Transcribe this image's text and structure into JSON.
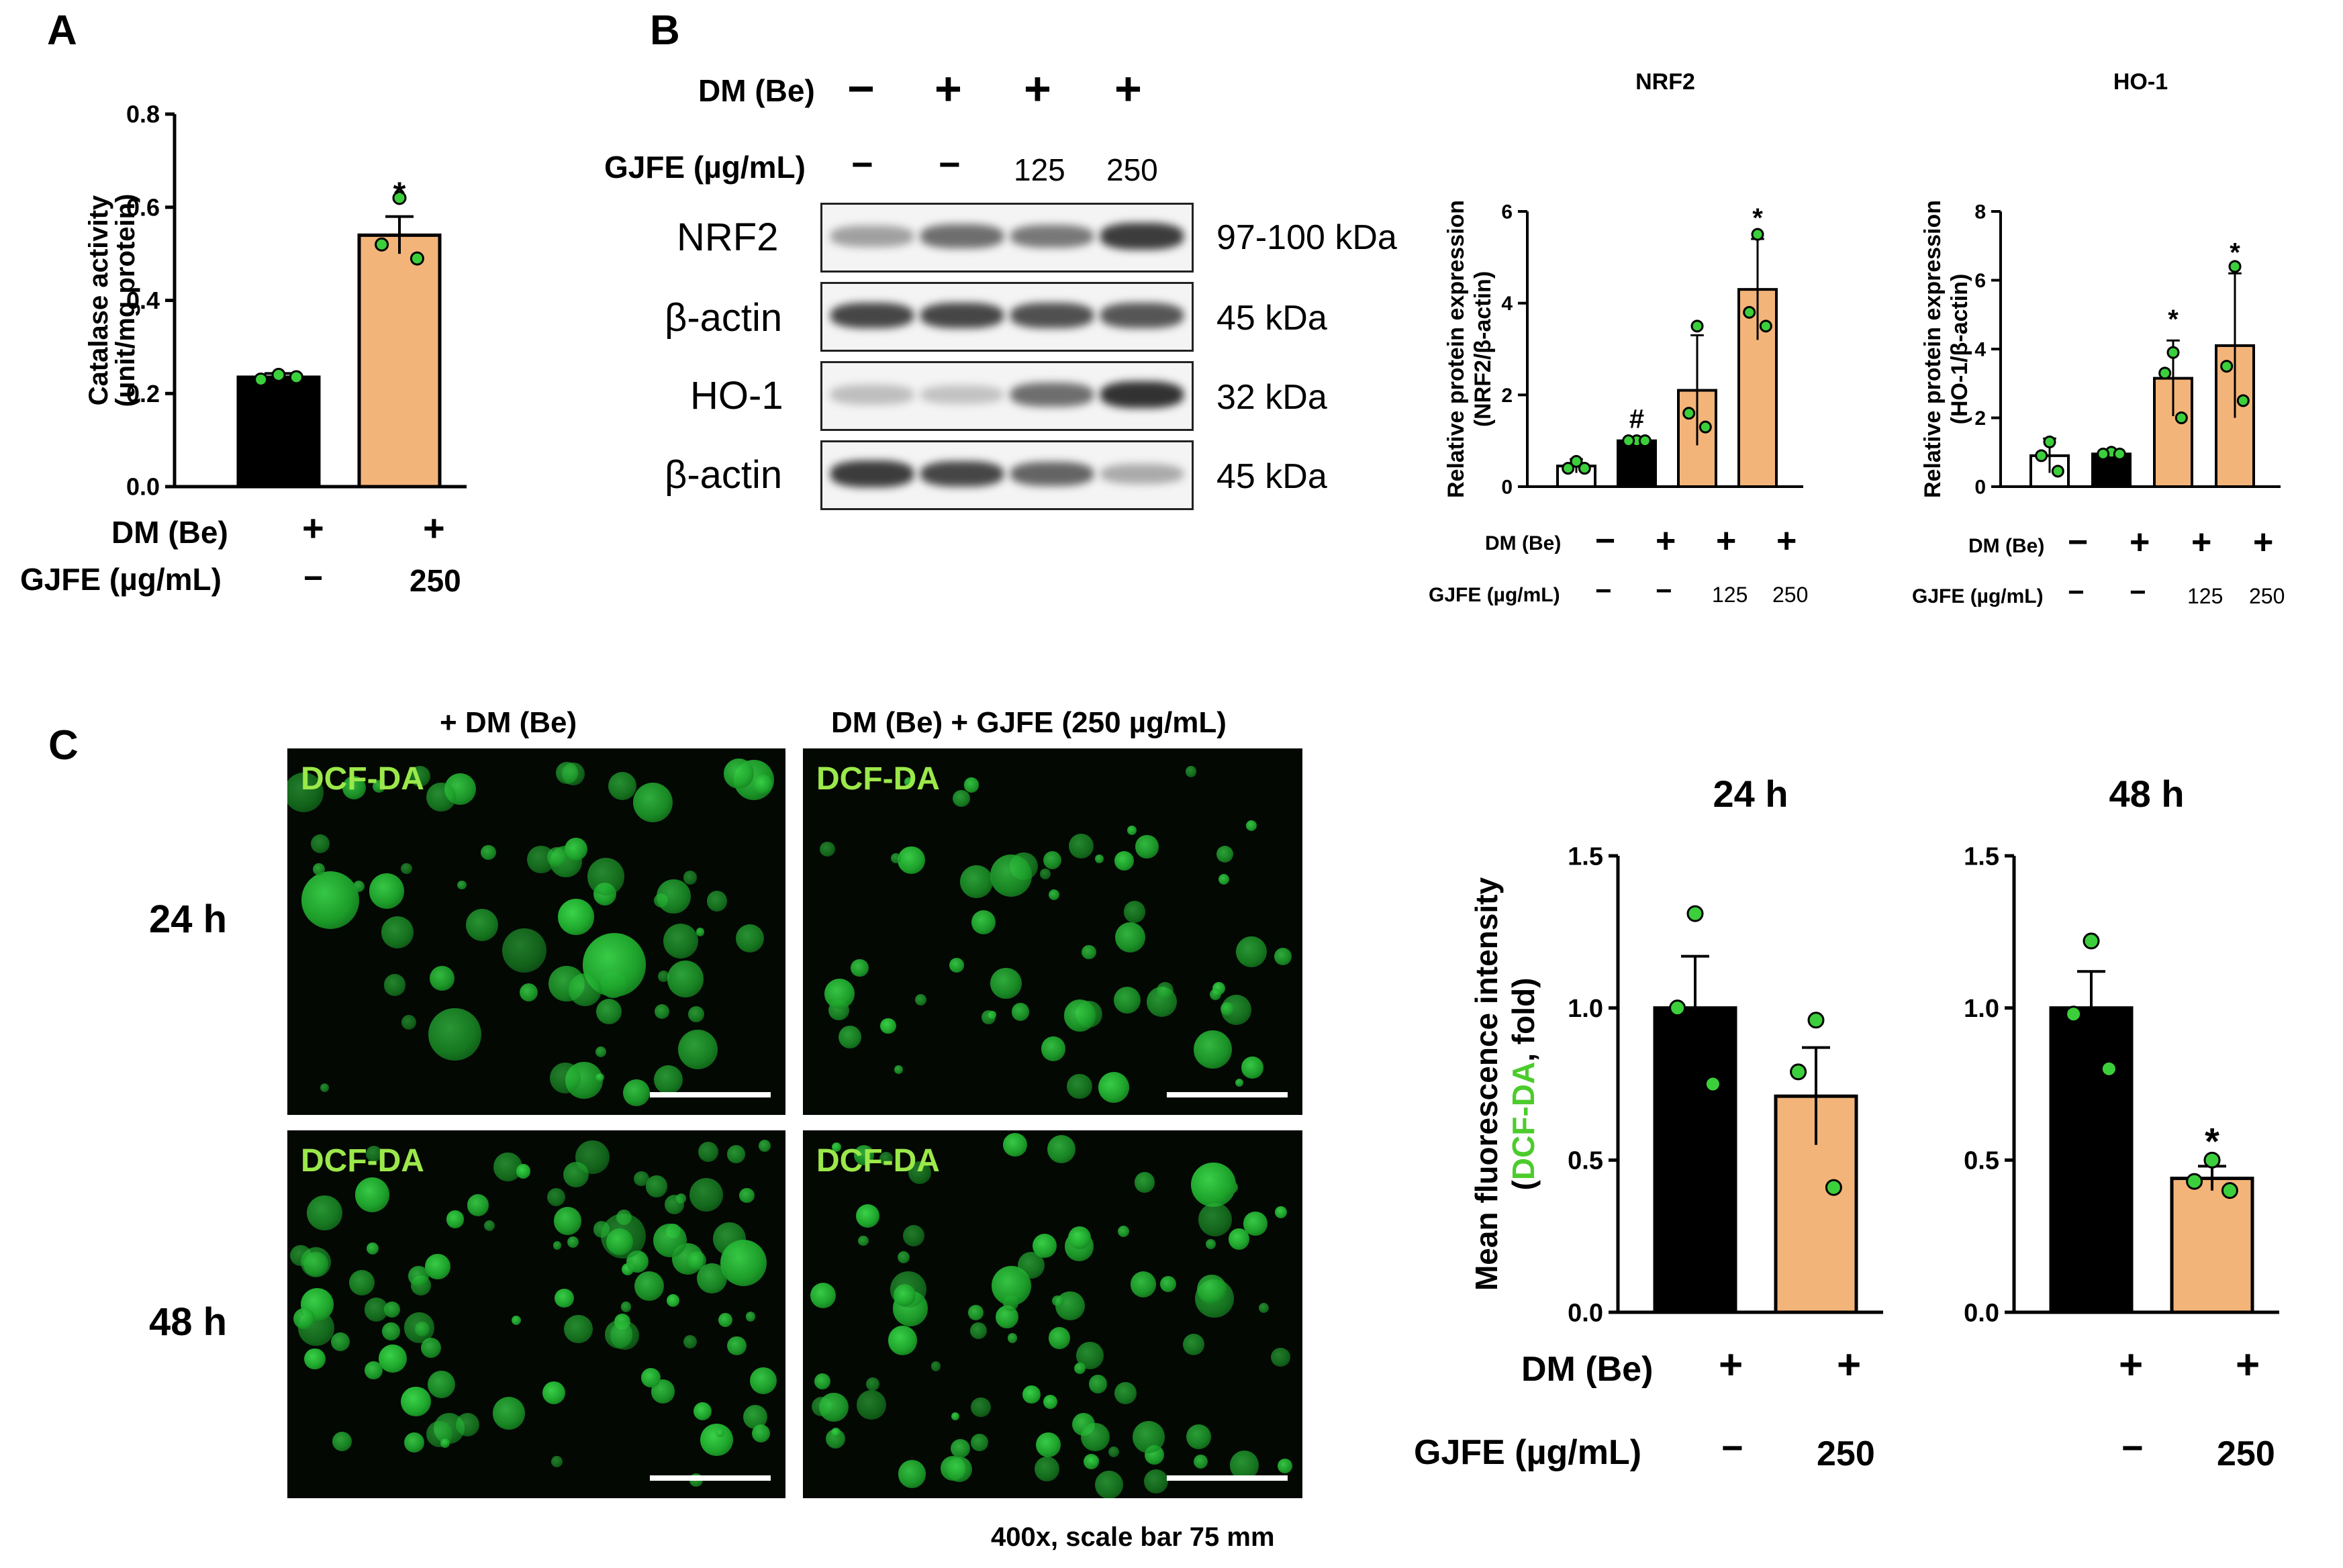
{
  "panels": {
    "A": "A",
    "B": "B",
    "C": "C"
  },
  "colors": {
    "black_bar": "#000000",
    "orange_bar": "#f3b47a",
    "white_bar": "#ffffff",
    "dot_green": "#3ccf3c",
    "dcf_label": "#9be84a",
    "ylabel_green": "#4ccc2c"
  },
  "panel_a": {
    "condition_labels": [
      "DM (Be)",
      "GJFE (µg/mL)"
    ],
    "dm_marks": [
      "+",
      "+"
    ],
    "gjfe_marks": [
      "−",
      "250"
    ]
  },
  "panel_b": {
    "dm_label": "DM (Be)",
    "gjfe_label": "GJFE (µg/mL)",
    "dm_marks": [
      "−",
      "+",
      "+",
      "+"
    ],
    "gjfe_marks": [
      "−",
      "−",
      "125",
      "250"
    ],
    "blots": [
      {
        "name": "NRF2",
        "kda": "97-100 kDa"
      },
      {
        "name": "β-actin",
        "kda": "45 kDa"
      },
      {
        "name": "HO-1",
        "kda": "32 kDa"
      },
      {
        "name": "β-actin",
        "kda": "45 kDa"
      }
    ],
    "blot_intensity": {
      "NRF2": [
        0.35,
        0.6,
        0.55,
        0.85
      ],
      "actin1": [
        0.8,
        0.8,
        0.75,
        0.72
      ],
      "HO-1": [
        0.2,
        0.18,
        0.6,
        0.9
      ],
      "actin2": [
        0.85,
        0.8,
        0.65,
        0.3
      ]
    },
    "cond_row_labels": [
      "DM (Be)",
      "GJFE (µg/mL)"
    ],
    "cond_dm_marks": [
      "−",
      "+",
      "+",
      "+"
    ],
    "cond_gjfe_marks": [
      "−",
      "−",
      "125",
      "250"
    ]
  },
  "panel_c": {
    "col_titles": [
      "+ DM (Be)",
      "DM (Be) + GJFE (250 µg/mL)"
    ],
    "row_titles": [
      "24 h",
      "48 h"
    ],
    "stain_label": "DCF-DA",
    "caption": "400x, scale bar 75 mm",
    "cond_labels": [
      "DM (Be)",
      "GJFE (µg/mL)"
    ],
    "dm_marks": [
      "+",
      "+",
      "+",
      "+"
    ],
    "gjfe_marks": [
      "−",
      "250",
      "−",
      "250"
    ]
  },
  "chart_data": [
    {
      "id": "catalase",
      "type": "bar",
      "categories": [
        "1",
        "2"
      ],
      "values": [
        0.235,
        0.54
      ],
      "errors": [
        0.008,
        0.04
      ],
      "points": [
        [
          0.24,
          0.23,
          0.235
        ],
        [
          0.62,
          0.52,
          0.49
        ]
      ],
      "colors": [
        "#000000",
        "#f3b47a"
      ],
      "significance": [
        "",
        "*"
      ],
      "title": "",
      "ylabel": "Catalase activity",
      "ylabel2": "(unit/mg protein)",
      "ylim": [
        0,
        0.8
      ],
      "yticks": [
        "0.0",
        "0.2",
        "0.4",
        "0.6",
        "0.8"
      ],
      "ytick_values": [
        0,
        0.2,
        0.4,
        0.6,
        0.8
      ]
    },
    {
      "id": "nrf2",
      "type": "bar",
      "categories": [
        "1",
        "2",
        "3",
        "4"
      ],
      "values": [
        0.45,
        1.0,
        2.1,
        4.3
      ],
      "errors": [
        0.15,
        0.02,
        1.2,
        1.1
      ],
      "points": [
        [
          0.55,
          0.4,
          0.4
        ],
        [
          1.0,
          1.0,
          1.0
        ],
        [
          3.5,
          1.6,
          1.3
        ],
        [
          5.5,
          3.8,
          3.5
        ]
      ],
      "colors": [
        "#ffffff",
        "#000000",
        "#f3b47a",
        "#f3b47a"
      ],
      "significance": [
        "",
        "#",
        "",
        "*"
      ],
      "title": "NRF2",
      "ylabel": "Relative protein expression",
      "ylabel2": "(NRF2/β-actin)",
      "ylim": [
        0,
        6
      ],
      "yticks": [
        "0",
        "2",
        "4",
        "6"
      ],
      "ytick_values": [
        0,
        2,
        4,
        6
      ]
    },
    {
      "id": "ho1",
      "type": "bar",
      "categories": [
        "1",
        "2",
        "3",
        "4"
      ],
      "values": [
        0.9,
        0.95,
        3.15,
        4.1
      ],
      "errors": [
        0.5,
        0.05,
        1.1,
        2.1
      ],
      "points": [
        [
          1.3,
          0.9,
          0.45
        ],
        [
          1.0,
          0.95,
          0.95
        ],
        [
          3.9,
          3.3,
          2.0
        ],
        [
          6.4,
          3.5,
          2.5
        ]
      ],
      "colors": [
        "#ffffff",
        "#000000",
        "#f3b47a",
        "#f3b47a"
      ],
      "significance": [
        "",
        "",
        "*",
        "*"
      ],
      "title": "HO-1",
      "ylabel": "Relative protein expression",
      "ylabel2": "(HO-1/β-actin)",
      "ylim": [
        0,
        8
      ],
      "yticks": [
        "0",
        "2",
        "4",
        "6",
        "8"
      ],
      "ytick_values": [
        0,
        2,
        4,
        6,
        8
      ]
    },
    {
      "id": "fluor24",
      "type": "bar",
      "categories": [
        "1",
        "2"
      ],
      "values": [
        1.0,
        0.71
      ],
      "errors": [
        0.17,
        0.16
      ],
      "points": [
        [
          1.31,
          1.0,
          0.75
        ],
        [
          0.96,
          0.79,
          0.41
        ]
      ],
      "colors": [
        "#000000",
        "#f3b47a"
      ],
      "significance": [
        "",
        ""
      ],
      "title": "24 h",
      "ylabel": "Mean fluorescence intensity",
      "ylabel2": "(DCF-DA, fold)",
      "ylim": [
        0,
        1.5
      ],
      "yticks": [
        "0.0",
        "0.5",
        "1.0",
        "1.5"
      ],
      "ytick_values": [
        0,
        0.5,
        1.0,
        1.5
      ]
    },
    {
      "id": "fluor48",
      "type": "bar",
      "categories": [
        "1",
        "2"
      ],
      "values": [
        1.0,
        0.44
      ],
      "errors": [
        0.12,
        0.04
      ],
      "points": [
        [
          1.22,
          0.98,
          0.8
        ],
        [
          0.5,
          0.43,
          0.4
        ]
      ],
      "colors": [
        "#000000",
        "#f3b47a"
      ],
      "significance": [
        "",
        "*"
      ],
      "title": "48 h",
      "ylabel": "",
      "ylabel2": "",
      "ylim": [
        0,
        1.5
      ],
      "yticks": [
        "0.0",
        "0.5",
        "1.0",
        "1.5"
      ],
      "ytick_values": [
        0,
        0.5,
        1.0,
        1.5
      ]
    }
  ]
}
